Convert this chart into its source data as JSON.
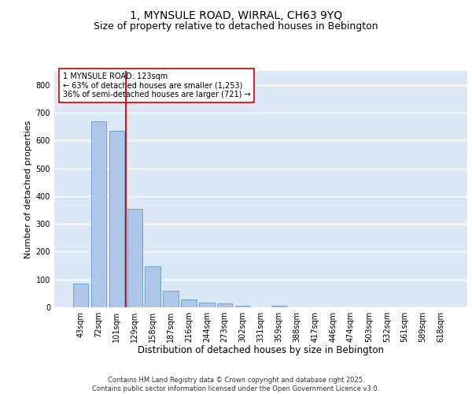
{
  "title1": "1, MYNSULE ROAD, WIRRAL, CH63 9YQ",
  "title2": "Size of property relative to detached houses in Bebington",
  "xlabel": "Distribution of detached houses by size in Bebington",
  "ylabel": "Number of detached properties",
  "categories": [
    "43sqm",
    "72sqm",
    "101sqm",
    "129sqm",
    "158sqm",
    "187sqm",
    "216sqm",
    "244sqm",
    "273sqm",
    "302sqm",
    "331sqm",
    "359sqm",
    "388sqm",
    "417sqm",
    "446sqm",
    "474sqm",
    "503sqm",
    "532sqm",
    "561sqm",
    "589sqm",
    "618sqm"
  ],
  "values": [
    85,
    670,
    635,
    355,
    148,
    60,
    27,
    18,
    13,
    6,
    0,
    5,
    0,
    0,
    0,
    0,
    0,
    0,
    0,
    0,
    0
  ],
  "bar_color": "#aec6e8",
  "bar_edge_color": "#5b9bd5",
  "vline_index": 2.5,
  "vline_color": "#cc0000",
  "annotation_text": "1 MYNSULE ROAD: 123sqm\n← 63% of detached houses are smaller (1,253)\n36% of semi-detached houses are larger (721) →",
  "annotation_box_color": "#ffffff",
  "annotation_box_edge": "#cc0000",
  "ylim": [
    0,
    850
  ],
  "yticks": [
    0,
    100,
    200,
    300,
    400,
    500,
    600,
    700,
    800
  ],
  "background_color": "#dce8f5",
  "grid_color": "#ffffff",
  "footer_text": "Contains HM Land Registry data © Crown copyright and database right 2025.\nContains public sector information licensed under the Open Government Licence v3.0.",
  "title1_fontsize": 10,
  "title2_fontsize": 9,
  "xlabel_fontsize": 8.5,
  "ylabel_fontsize": 8,
  "tick_fontsize": 7,
  "annot_fontsize": 7,
  "footer_fontsize": 6
}
